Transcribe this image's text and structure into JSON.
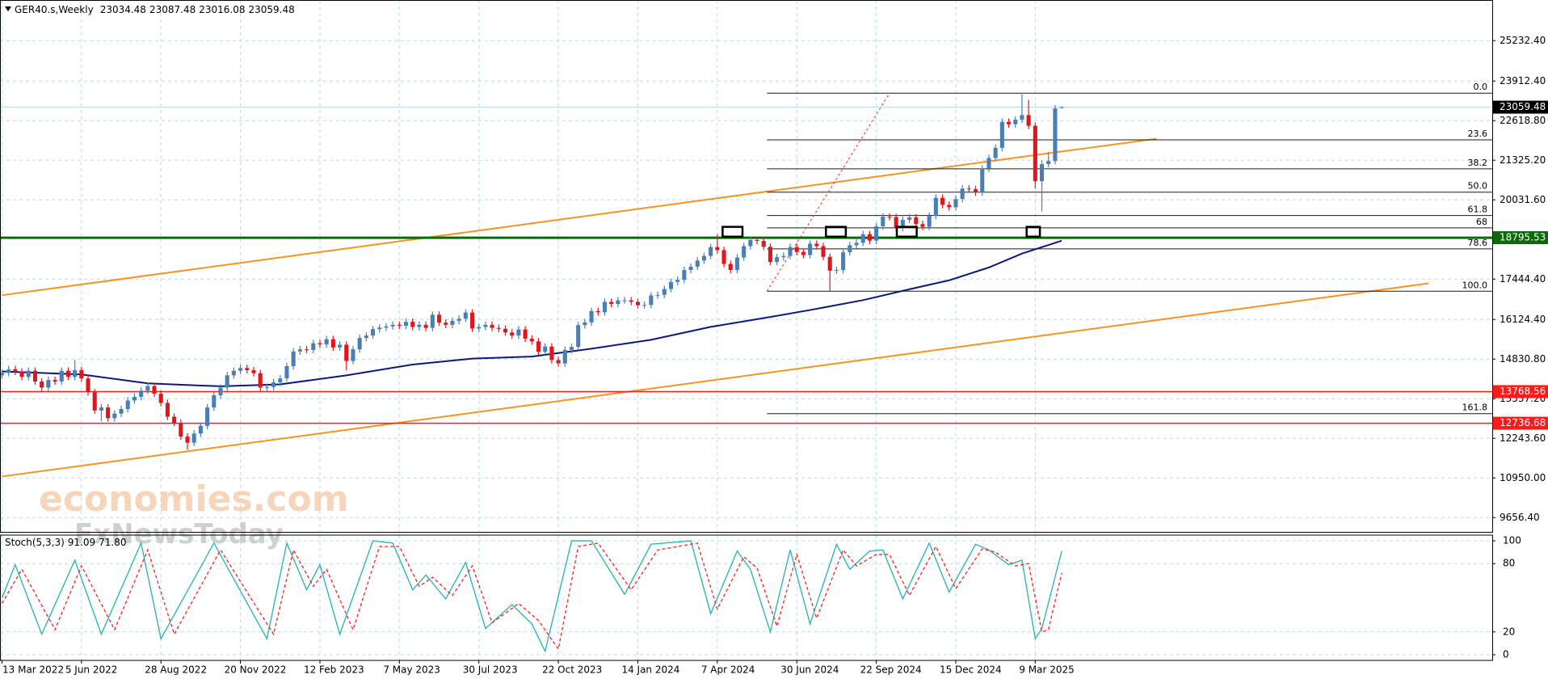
{
  "chart_data": [
    {
      "type": "candlestick",
      "symbol": "GER40.s,Weekly",
      "categories": [
        "13 Mar 2022",
        null,
        null,
        null,
        null,
        null,
        null,
        null,
        null,
        null,
        null,
        null,
        "5 Jun 2022",
        null,
        null,
        null,
        null,
        null,
        null,
        null,
        null,
        null,
        null,
        null,
        "28 Aug 2022",
        null,
        null,
        null,
        null,
        null,
        null,
        null,
        null,
        null,
        null,
        null,
        "20 Nov 2022",
        null,
        null,
        null,
        null,
        null,
        null,
        null,
        null,
        null,
        null,
        null,
        "12 Feb 2023",
        null,
        null,
        null,
        null,
        null,
        null,
        null,
        null,
        null,
        null,
        null,
        "7 May 2023",
        null,
        null,
        null,
        null,
        null,
        null,
        null,
        null,
        null,
        null,
        null,
        "30 Jul 2023",
        null,
        null,
        null,
        null,
        null,
        null,
        null,
        null,
        null,
        null,
        null,
        "22 Oct 2023",
        null,
        null,
        null,
        null,
        null,
        null,
        null,
        null,
        null,
        null,
        null,
        "14 Jan 2024",
        null,
        null,
        null,
        null,
        null,
        null,
        null,
        null,
        null,
        null,
        null,
        "7 Apr 2024",
        null,
        null,
        null,
        null,
        null,
        null,
        null,
        null,
        null,
        null,
        null,
        "30 Jun 2024",
        null,
        null,
        null,
        null,
        null,
        null,
        null,
        null,
        null,
        null,
        null,
        "22 Sep 2024",
        null,
        null,
        null,
        null,
        null,
        null,
        null,
        null,
        null,
        null,
        null,
        "15 Dec 2024",
        null,
        null,
        null,
        null,
        null,
        null,
        null,
        null,
        null,
        null,
        null,
        "9 Mar 2025",
        null,
        null,
        null,
        null
      ],
      "open": [
        14300,
        14380,
        14500,
        14420,
        14250,
        14450,
        14100,
        13900,
        14150,
        14100,
        14450,
        14250,
        14470,
        14200,
        13750,
        13150,
        13250,
        12900,
        13050,
        13200,
        13480,
        13600,
        13800,
        13950,
        13700,
        13400,
        12950,
        12750,
        12300,
        12100,
        12400,
        12650,
        13250,
        13650,
        13900,
        14300,
        14450,
        14540,
        14470,
        14370,
        13900,
        13920,
        14070,
        14200,
        14600,
        15080,
        15150,
        15130,
        15350,
        15310,
        15480,
        15210,
        15300,
        14770,
        15150,
        15520,
        15600,
        15810,
        15860,
        15900,
        15950,
        15920,
        16050,
        15880,
        15950,
        15850,
        16280,
        16020,
        15950,
        16080,
        16150,
        16350,
        15830,
        15880,
        15950,
        15850,
        15820,
        15700,
        15600,
        15800,
        15500,
        15410,
        15070,
        15240,
        14800,
        14690,
        15130,
        15230,
        15940,
        16030,
        16400,
        16360,
        16700,
        16630,
        16750,
        16750,
        16700,
        16590,
        16600,
        16910,
        16930,
        17120,
        17350,
        17420,
        17740,
        17850,
        18050,
        18200,
        18490,
        18390,
        17940,
        17740,
        18150,
        18520,
        18720,
        18690,
        18500,
        18000,
        18160,
        18200,
        18490,
        18330,
        18230,
        18600,
        18520,
        18170,
        17720,
        17740,
        18320,
        18550,
        18630,
        18910,
        18700,
        19170,
        19480,
        19470,
        19120,
        19380,
        19460,
        19240,
        19150,
        19510,
        20100,
        19870,
        19790,
        20060,
        20400,
        20380,
        20270,
        21050,
        21400,
        21730,
        22580,
        22500,
        22650,
        22800,
        22450,
        20640,
        21200,
        21300,
        23034.48
      ],
      "high": [
        14490,
        14610,
        14610,
        14530,
        14560,
        14560,
        14210,
        14260,
        14260,
        14560,
        14560,
        14800,
        14580,
        14310,
        13860,
        13360,
        13360,
        13160,
        13310,
        13590,
        13710,
        13910,
        14060,
        14060,
        13810,
        13510,
        13060,
        12860,
        12410,
        12510,
        12760,
        13360,
        13760,
        14010,
        14410,
        14560,
        14650,
        14650,
        14580,
        14480,
        14030,
        14180,
        14310,
        14710,
        15190,
        15260,
        15260,
        15460,
        15460,
        15590,
        15590,
        15410,
        15410,
        15260,
        15630,
        15710,
        15920,
        15970,
        16010,
        16060,
        16060,
        16160,
        16160,
        16060,
        16060,
        16390,
        16390,
        16130,
        16190,
        16260,
        16460,
        16460,
        15990,
        16060,
        16060,
        15960,
        15930,
        15810,
        15910,
        15910,
        15610,
        15520,
        15350,
        15350,
        14910,
        15240,
        15340,
        16050,
        16140,
        16510,
        16510,
        16810,
        16810,
        16860,
        16860,
        16860,
        16810,
        16710,
        17020,
        17040,
        17230,
        17460,
        17530,
        17850,
        17960,
        18160,
        18310,
        18600,
        18900,
        18500,
        18050,
        18260,
        18630,
        18830,
        18830,
        18800,
        18610,
        18270,
        18310,
        18600,
        18600,
        18440,
        18710,
        18710,
        18630,
        18280,
        17850,
        18430,
        18660,
        18740,
        19020,
        19020,
        19280,
        19590,
        19590,
        19580,
        19490,
        19570,
        19570,
        19350,
        19620,
        20210,
        20210,
        19980,
        20170,
        20510,
        20510,
        20490,
        21160,
        21510,
        21840,
        22690,
        22690,
        22760,
        23480,
        23300,
        22560,
        21310,
        21600,
        23130,
        23087.48
      ],
      "low": [
        14190,
        14270,
        14310,
        14140,
        14140,
        13990,
        13790,
        13790,
        13990,
        13990,
        14140,
        14140,
        14090,
        13640,
        13040,
        12800,
        12790,
        12790,
        12940,
        13090,
        13370,
        13490,
        13690,
        13590,
        13290,
        12840,
        12640,
        12190,
        11870,
        11990,
        12290,
        12540,
        13140,
        13540,
        13790,
        14190,
        14340,
        14360,
        14260,
        13790,
        13790,
        13810,
        13960,
        14090,
        14490,
        14970,
        15020,
        15020,
        15200,
        15200,
        15100,
        15100,
        14460,
        14660,
        15040,
        15410,
        15490,
        15700,
        15750,
        15790,
        15810,
        15810,
        15770,
        15770,
        15740,
        15740,
        15910,
        15840,
        15840,
        15970,
        16040,
        15720,
        15720,
        15770,
        15740,
        15710,
        15590,
        15490,
        15490,
        15390,
        15300,
        14960,
        14960,
        14690,
        14580,
        14580,
        15020,
        15120,
        15830,
        15920,
        16250,
        16250,
        16520,
        16520,
        16640,
        16590,
        16480,
        16480,
        16490,
        16800,
        16820,
        17010,
        17240,
        17310,
        17630,
        17740,
        17940,
        18090,
        18280,
        17830,
        17630,
        17630,
        18040,
        18410,
        18580,
        18390,
        17890,
        17890,
        18050,
        18090,
        18220,
        18120,
        18120,
        18410,
        18060,
        17030,
        17610,
        17630,
        18210,
        18440,
        18520,
        18590,
        18590,
        19060,
        19360,
        19010,
        19010,
        19270,
        19130,
        19040,
        19040,
        19400,
        19760,
        19680,
        19680,
        19950,
        20270,
        20160,
        20160,
        20940,
        21290,
        21620,
        22390,
        22390,
        22540,
        22340,
        20410,
        19650,
        21090,
        21190,
        23016.08
      ],
      "close": [
        14380,
        14500,
        14420,
        14250,
        14450,
        14100,
        13900,
        14150,
        14100,
        14450,
        14250,
        14470,
        14200,
        13750,
        13150,
        13250,
        12900,
        13050,
        13200,
        13480,
        13600,
        13800,
        13950,
        13700,
        13400,
        12950,
        12750,
        12300,
        12100,
        12400,
        12650,
        13250,
        13650,
        13900,
        14300,
        14450,
        14540,
        14470,
        14370,
        13900,
        13920,
        14070,
        14200,
        14600,
        15080,
        15150,
        15130,
        15350,
        15310,
        15480,
        15210,
        15300,
        14770,
        15150,
        15520,
        15600,
        15810,
        15860,
        15900,
        15950,
        15920,
        16050,
        15880,
        15950,
        15850,
        16280,
        16020,
        15950,
        16080,
        16150,
        16350,
        15830,
        15880,
        15950,
        15850,
        15820,
        15700,
        15600,
        15800,
        15500,
        15410,
        15070,
        15240,
        14800,
        14690,
        15130,
        15230,
        15940,
        16030,
        16400,
        16360,
        16700,
        16630,
        16750,
        16750,
        16700,
        16590,
        16600,
        16910,
        16930,
        17120,
        17350,
        17420,
        17740,
        17850,
        18050,
        18200,
        18490,
        18390,
        17940,
        17740,
        18150,
        18520,
        18720,
        18690,
        18500,
        18000,
        18160,
        18200,
        18490,
        18330,
        18230,
        18600,
        18520,
        18170,
        17720,
        17740,
        18320,
        18550,
        18630,
        18910,
        18700,
        19170,
        19480,
        19470,
        19120,
        19380,
        19460,
        19240,
        19150,
        19510,
        20100,
        19870,
        19790,
        20060,
        20400,
        20380,
        20270,
        21050,
        21400,
        21730,
        22580,
        22500,
        22650,
        22800,
        22450,
        20640,
        21200,
        21300,
        23020,
        23059.48
      ],
      "up_color": "#4a7fb5",
      "down_color": "#e3141c",
      "xlim": [
        -0.3,
        225
      ],
      "ylim": [
        9188,
        26559
      ],
      "yticks": [
        {
          "value": 25232.4,
          "label": "25232.40"
        },
        {
          "value": 23912.4,
          "label": "23912.40"
        },
        {
          "value": 22618.8,
          "label": "22618.80"
        },
        {
          "value": 21325.2,
          "label": "21325.20"
        },
        {
          "value": 20031.6,
          "label": "20031.60"
        },
        {
          "value": 17444.4,
          "label": "17444.40"
        },
        {
          "value": 16124.4,
          "label": "16124.40"
        },
        {
          "value": 14830.8,
          "label": "14830.80"
        },
        {
          "value": 13537.2,
          "label": "13537.20"
        },
        {
          "value": 12243.6,
          "label": "12243.60"
        },
        {
          "value": 10950,
          "label": "10950.00"
        },
        {
          "value": 9656.4,
          "label": "9656.40"
        }
      ],
      "grid": true,
      "overlays": [
        {
          "color": "#0b1a7a",
          "x": [
            0,
            12,
            22,
            33,
            42,
            52,
            62,
            71,
            80,
            89,
            98,
            107,
            116,
            122,
            130,
            137,
            143,
            149,
            154,
            160
          ],
          "values": [
            14427,
            14330,
            14039,
            13942,
            14007,
            14300,
            14654,
            14848,
            14913,
            15171,
            15462,
            15883,
            16206,
            16433,
            16756,
            17112,
            17404,
            17824,
            18277,
            18698
          ]
        }
      ],
      "trendlines": [
        {
          "color": "#f7931e",
          "x": [
            0,
            174.3
          ],
          "values": [
            16918,
            22030
          ]
        },
        {
          "color": "#f7931e",
          "x": [
            0,
            215.4
          ],
          "values": [
            10998,
            17306
          ]
        }
      ],
      "levels": [
        {
          "value": 18795.53,
          "color": "#0a6a0a"
        },
        {
          "value": 13768.56,
          "color": "#ff1a1a"
        },
        {
          "value": 12736.68,
          "color": "#ff1a1a"
        }
      ],
      "fibonacci": {
        "x": [
          115.5,
          225
        ],
        "trend_x": [
          115.5,
          134
        ],
        "high": 23517,
        "low": 17048,
        "color": "#1a1a1a",
        "trend_color": "#ff2a2a",
        "levels": [
          {
            "value": 0,
            "label": "0.0"
          },
          23.6,
          38.2,
          {
            "value": 50,
            "label": "50.0"
          },
          61.8,
          68,
          78.6,
          {
            "value": 100,
            "label": "100.0"
          },
          161.8
        ]
      },
      "boxes": [
        {
          "x": [
            108.8,
            111.8
          ],
          "y": [
            18830,
            19150
          ]
        },
        {
          "x": [
            124.4,
            127.4
          ],
          "y": [
            18830,
            19150
          ]
        },
        {
          "x": [
            135.1,
            138.1
          ],
          "y": [
            18830,
            19150
          ]
        },
        {
          "x": [
            154.7,
            156.7
          ],
          "y": [
            18830,
            19150
          ]
        }
      ],
      "watermark": {
        "brand": "economies.com",
        "source": "FxNewsToday"
      }
    },
    {
      "type": "line",
      "title": "Stoch(5,3,3)",
      "readout": [
        "91.09",
        "71.80"
      ],
      "xlim": [
        -0.3,
        225
      ],
      "ylim": [
        -5,
        105
      ],
      "yticks": [
        0,
        20,
        80,
        100
      ],
      "series": [
        {
          "color": "#22b3b3",
          "x": [
            0,
            2,
            6,
            11,
            15,
            21,
            24,
            32,
            40,
            43,
            46,
            48,
            51,
            56,
            59,
            62,
            64,
            67,
            70,
            73,
            77,
            80,
            82,
            86,
            89,
            94,
            98,
            104,
            107,
            111,
            113,
            116,
            119,
            122,
            126,
            128,
            131,
            133,
            136,
            140,
            143,
            147,
            149,
            152,
            154,
            156,
            157,
            160
          ],
          "values": [
            50,
            79,
            18,
            83,
            18,
            98,
            14,
            98,
            14,
            98,
            57,
            79,
            18,
            100,
            98,
            57,
            70,
            49,
            81,
            23,
            44,
            27,
            3,
            100,
            100,
            53,
            97,
            100,
            36,
            91,
            75,
            20,
            92,
            27,
            97,
            75,
            91,
            92,
            49,
            98,
            55,
            97,
            92,
            79,
            83,
            14,
            23,
            91.09
          ]
        },
        {
          "color": "#ff2020",
          "dashed": true,
          "x": [
            0,
            3,
            8,
            12,
            17,
            22,
            26,
            33,
            41,
            44,
            47,
            49,
            53,
            57,
            60,
            63,
            65,
            68,
            71,
            74,
            78,
            81,
            84,
            87,
            90,
            95,
            99,
            105,
            108,
            112,
            114,
            117,
            120,
            123,
            127,
            129,
            132,
            134,
            137,
            141,
            144,
            148,
            150,
            153,
            155,
            157,
            158,
            160
          ],
          "values": [
            45,
            75,
            22,
            78,
            22,
            92,
            18,
            92,
            18,
            92,
            60,
            75,
            22,
            95,
            95,
            60,
            68,
            52,
            78,
            28,
            45,
            30,
            5,
            95,
            98,
            57,
            92,
            98,
            40,
            86,
            76,
            25,
            88,
            32,
            92,
            78,
            88,
            88,
            52,
            95,
            58,
            93,
            90,
            78,
            80,
            20,
            22,
            71.8
          ]
        }
      ]
    }
  ]
}
